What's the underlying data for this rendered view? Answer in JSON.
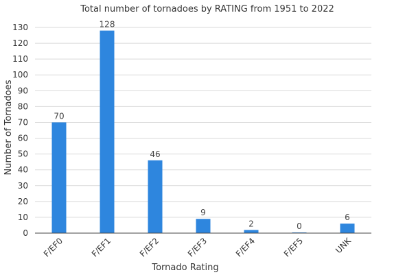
{
  "chart_data": {
    "type": "bar",
    "title": "Total number of tornadoes by RATING from 1951 to 2022",
    "xlabel": "Tornado Rating",
    "ylabel": "Number of Tornadoes",
    "categories": [
      "F/EF0",
      "F/EF1",
      "F/EF2",
      "F/EF3",
      "F/EF4",
      "F/EF5",
      "UNK"
    ],
    "values": [
      70,
      128,
      46,
      9,
      2,
      0,
      6
    ],
    "ylim": [
      0,
      130
    ],
    "yticks": [
      0,
      10,
      20,
      30,
      40,
      50,
      60,
      70,
      80,
      90,
      100,
      110,
      120,
      130
    ],
    "grid": true,
    "legend": "none",
    "bar_color": "#2e86de"
  }
}
